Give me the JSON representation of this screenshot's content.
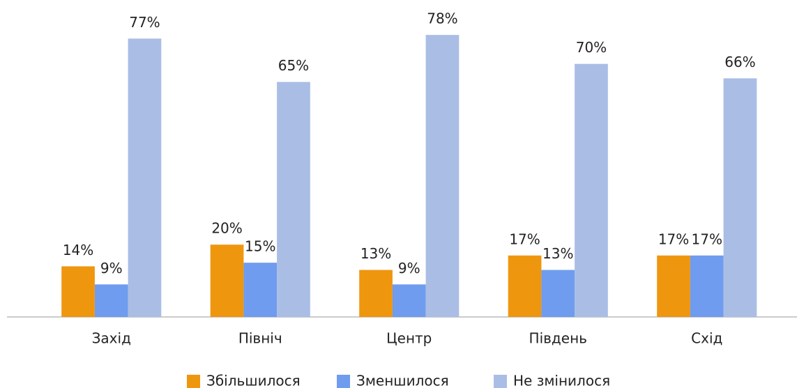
{
  "chart_data": {
    "type": "bar",
    "categories": [
      "Захід",
      "Північ",
      "Центр",
      "Південь",
      "Схід"
    ],
    "series": [
      {
        "name": "Збільшилося",
        "color": "#ef960f",
        "values": [
          14,
          20,
          13,
          17,
          17
        ],
        "value_labels": [
          "14%",
          "20%",
          "13%",
          "17%",
          "17%"
        ]
      },
      {
        "name": "Зменшилося",
        "color": "#6f9cee",
        "values": [
          9,
          15,
          9,
          13,
          17
        ],
        "value_labels": [
          "9%",
          "15%",
          "9%",
          "13%",
          "17%"
        ]
      },
      {
        "name": "Не змінилося",
        "color": "#aabde5",
        "values": [
          77,
          65,
          78,
          70,
          66
        ],
        "value_labels": [
          "77%",
          "65%",
          "78%",
          "70%",
          "66%"
        ]
      }
    ]
  }
}
